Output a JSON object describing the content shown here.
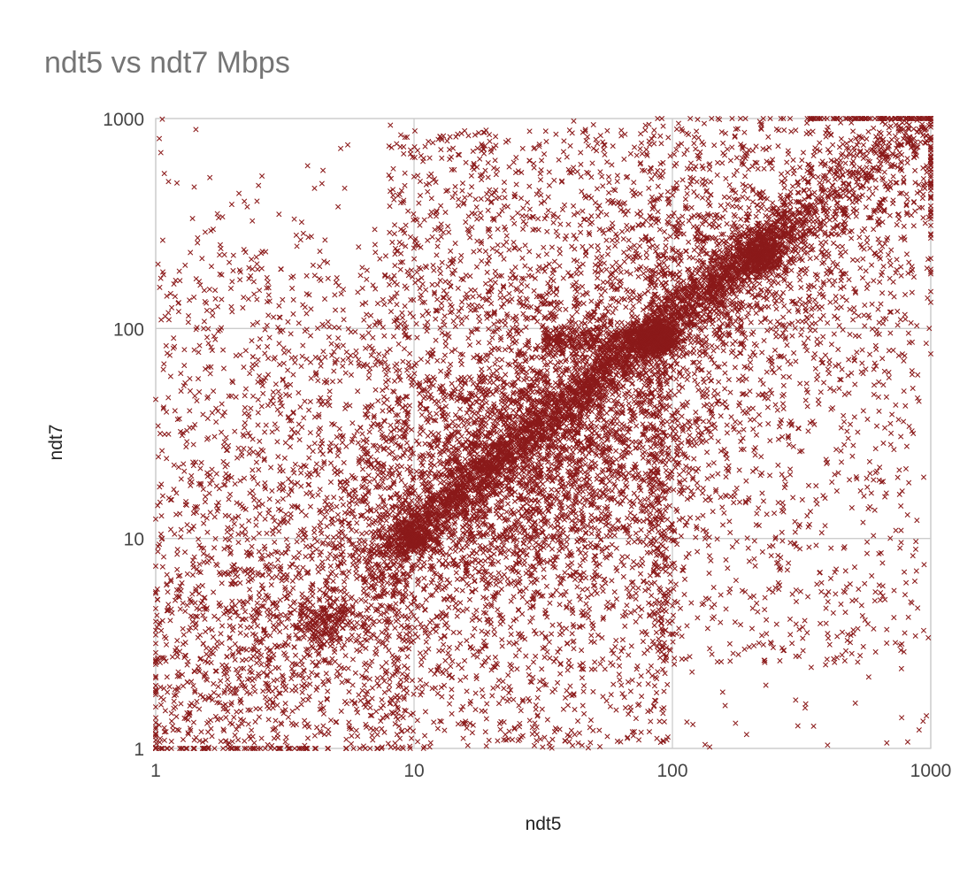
{
  "chart_data": {
    "type": "scatter",
    "title": "ndt5 vs ndt7 Mbps",
    "xlabel": "ndt5",
    "ylabel": "ndt7",
    "x_scale": "log",
    "y_scale": "log",
    "xlim": [
      1,
      1000
    ],
    "ylim": [
      1,
      1000
    ],
    "x_ticks": [
      "1",
      "10",
      "100",
      "1000"
    ],
    "y_ticks": [
      "1",
      "10",
      "100",
      "1000"
    ],
    "grid": true,
    "legend": "none",
    "marker": "x",
    "series_color": "#8b1a1a",
    "series": [
      {
        "points": [
          [
            5.2,
            720
          ],
          [
            8.1,
            930
          ],
          [
            2.1,
            440
          ],
          [
            2.5,
            480
          ],
          [
            4.4,
            490
          ],
          [
            1.3,
            200
          ],
          [
            1.8,
            180
          ],
          [
            3.0,
            350
          ],
          [
            19.0,
            880
          ],
          [
            28.0,
            870
          ],
          [
            40.0,
            880
          ],
          [
            45.0,
            860
          ],
          [
            65.0,
            640
          ],
          [
            85.0,
            880
          ],
          [
            104,
            890
          ],
          [
            176,
            890
          ],
          [
            220,
            900
          ],
          [
            300,
            880
          ],
          [
            500,
            870
          ],
          [
            600,
            900
          ],
          [
            700,
            920
          ],
          [
            820,
            900
          ],
          [
            900,
            890
          ],
          [
            920,
            900
          ],
          [
            1.05,
            110
          ],
          [
            1.6,
            85
          ],
          [
            1.3,
            55
          ],
          [
            1.1,
            40
          ],
          [
            1.4,
            28
          ],
          [
            1.2,
            13
          ],
          [
            1.5,
            9
          ],
          [
            1.1,
            6
          ],
          [
            1.3,
            4.5
          ],
          [
            1.7,
            3
          ],
          [
            1.2,
            1.8
          ],
          [
            1.9,
            1.5
          ],
          [
            2.5,
            2.2
          ],
          [
            3.5,
            1.3
          ],
          [
            6.5,
            1.3
          ],
          [
            8.0,
            1.9
          ],
          [
            11.0,
            1.15
          ],
          [
            16.0,
            1.25
          ],
          [
            24.0,
            1.1
          ],
          [
            35.0,
            1.2
          ],
          [
            45.0,
            1.6
          ],
          [
            70.0,
            1.2
          ],
          [
            85.0,
            1.6
          ],
          [
            120,
            1.3
          ],
          [
            160,
            1.6
          ],
          [
            230,
            2.0
          ],
          [
            300,
            1.7
          ],
          [
            260,
            6.0
          ],
          [
            400,
            5.0
          ],
          [
            540,
            4.8
          ],
          [
            720,
            4.2
          ],
          [
            880,
            7.0
          ],
          [
            760,
            9.0
          ],
          [
            600,
            19.0
          ],
          [
            700,
            28.0
          ],
          [
            960,
            85.0
          ],
          [
            820,
            95.0
          ],
          [
            500,
            110
          ],
          [
            360,
            130
          ],
          [
            200,
            170
          ],
          [
            130,
            240
          ],
          [
            700,
            200
          ],
          [
            900,
            45.0
          ],
          [
            240,
            3.2
          ],
          [
            180,
            2.8
          ],
          [
            10.0,
            10.0
          ],
          [
            10.5,
            10.2
          ],
          [
            9.5,
            9.8
          ]
        ]
      }
    ]
  }
}
